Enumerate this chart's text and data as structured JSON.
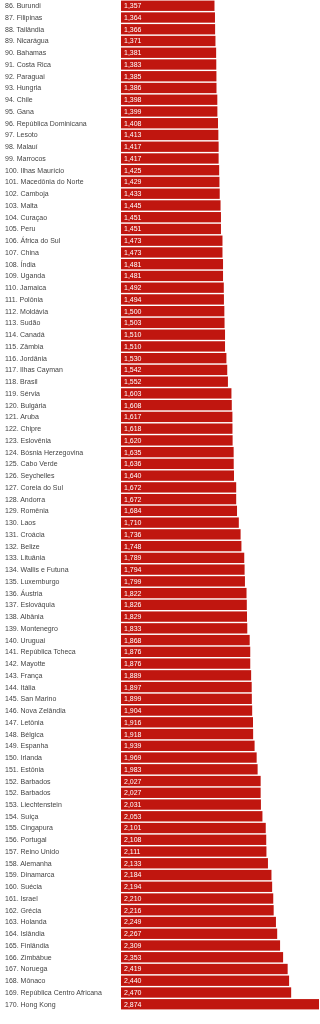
{
  "chart_data": {
    "type": "bar",
    "orientation": "horizontal",
    "tick_labels": "y",
    "color": "#c0160f",
    "categories": [
      "86. Burundi",
      "87. Filipinas",
      "88. Tailândia",
      "89. Nicarágua",
      "90. Bahamas",
      "91. Costa Rica",
      "92. Paraguai",
      "93. Hungria",
      "94. Chile",
      "95. Gana",
      "96. República Dominicana",
      "97. Lesoto",
      "98. Malauí",
      "99. Marrocos",
      "100. Ilhas Maurício",
      "101. Macedônia do Norte",
      "102. Camboja",
      "103. Malta",
      "104. Curaçao",
      "105. Peru",
      "106. África do Sul",
      "107. China",
      "108. Índia",
      "109. Uganda",
      "110. Jamaica",
      "111. Polônia",
      "112. Moldávia",
      "113. Sudão",
      "114. Canadá",
      "115. Zâmbia",
      "116. Jordânia",
      "117. Ilhas Cayman",
      "118. Brasil",
      "119. Sérvia",
      "120. Bulgária",
      "121. Aruba",
      "122. Chipre",
      "123. Eslovênia",
      "124. Bósnia Herzegovina",
      "125. Cabo Verde",
      "126. Seychelles",
      "127. Coreia do Sul",
      "128. Andorra",
      "129. Romênia",
      "130. Laos",
      "131. Croácia",
      "132. Belize",
      "133. Lituânia",
      "134. Wallis e Futuna",
      "135. Luxemburgo",
      "136. Áustria",
      "137. Eslováquia",
      "138. Albânia",
      "139. Montenegro",
      "140. Uruguai",
      "141. República Tcheca",
      "142. Mayotte",
      "143. França",
      "144. Itália",
      "145. San Marino",
      "146. Nova Zelândia",
      "147. Letônia",
      "148. Bélgica",
      "149. Espanha",
      "150. Irlanda",
      "151. Estônia",
      "152. Barbados",
      "152. Barbados",
      "153. Liechtenstein",
      "154. Suíça",
      "155. Cingapura",
      "156. Portugal",
      "157. Reino Unido",
      "158. Alemanha",
      "159. Dinamarca",
      "160. Suécia",
      "161. Israel",
      "162. Grécia",
      "163. Holanda",
      "164. Islândia",
      "165. Finlândia",
      "166. Zimbábue",
      "167. Noruega",
      "168. Mônaco",
      "169. República Centro Africana",
      "170. Hong Kong"
    ],
    "values": [
      1357,
      1364,
      1366,
      1371,
      1381,
      1383,
      1385,
      1386,
      1398,
      1399,
      1408,
      1413,
      1417,
      1417,
      1425,
      1429,
      1433,
      1445,
      1451,
      1451,
      1473,
      1473,
      1481,
      1481,
      1492,
      1494,
      1500,
      1503,
      1510,
      1510,
      1530,
      1542,
      1552,
      1603,
      1608,
      1617,
      1618,
      1620,
      1635,
      1636,
      1640,
      1672,
      1672,
      1684,
      1710,
      1736,
      1748,
      1789,
      1794,
      1799,
      1822,
      1826,
      1829,
      1833,
      1868,
      1876,
      1876,
      1889,
      1897,
      1899,
      1904,
      1916,
      1918,
      1939,
      1969,
      1983,
      2027,
      2027,
      2031,
      2053,
      2101,
      2108,
      2111,
      2133,
      2184,
      2194,
      2210,
      2216,
      2249,
      2267,
      2309,
      2353,
      2419,
      2440,
      2470,
      2874
    ],
    "value_labels": [
      "1,357",
      "1,364",
      "1,366",
      "1,371",
      "1,381",
      "1,383",
      "1,385",
      "1,386",
      "1,398",
      "1,399",
      "1,408",
      "1,413",
      "1,417",
      "1,417",
      "1,425",
      "1,429",
      "1,433",
      "1,445",
      "1,451",
      "1,451",
      "1,473",
      "1,473",
      "1,481",
      "1,481",
      "1,492",
      "1,494",
      "1,500",
      "1,503",
      "1,510",
      "1,510",
      "1,530",
      "1,542",
      "1,552",
      "1,603",
      "1,608",
      "1,617",
      "1,618",
      "1,620",
      "1,635",
      "1,636",
      "1,640",
      "1,672",
      "1,672",
      "1,684",
      "1,710",
      "1,736",
      "1,748",
      "1,789",
      "1,794",
      "1,799",
      "1,822",
      "1,826",
      "1,829",
      "1,833",
      "1,868",
      "1,876",
      "1,876",
      "1,889",
      "1,897",
      "1,899",
      "1,904",
      "1,916",
      "1,918",
      "1,939",
      "1,969",
      "1,983",
      "2,027",
      "2,027",
      "2,031",
      "2,053",
      "2,101",
      "2,108",
      "2,111",
      "2,133",
      "2,184",
      "2,194",
      "2,210",
      "2,216",
      "2,249",
      "2,267",
      "2,309",
      "2,353",
      "2,419",
      "2,440",
      "2,470",
      "2,874"
    ]
  }
}
